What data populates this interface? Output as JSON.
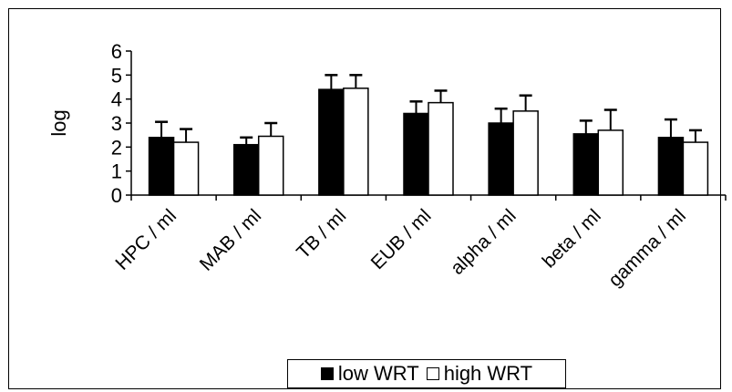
{
  "chart_data": {
    "type": "bar",
    "categories": [
      "HPC / ml",
      "MAB / ml",
      "TB / ml",
      "EUB / ml",
      "alpha / ml",
      "beta / ml",
      "gamma / ml"
    ],
    "series": [
      {
        "name": "low WRT",
        "color": "#000000",
        "values": [
          2.4,
          2.1,
          4.4,
          3.4,
          3.0,
          2.55,
          2.4
        ],
        "error_upper": [
          3.05,
          2.4,
          5.0,
          3.9,
          3.6,
          3.1,
          3.15
        ]
      },
      {
        "name": "high WRT",
        "color": "#ffffff",
        "values": [
          2.2,
          2.45,
          4.45,
          3.85,
          3.5,
          2.7,
          2.2
        ],
        "error_upper": [
          2.75,
          3.0,
          5.0,
          4.35,
          4.15,
          3.55,
          2.7
        ]
      }
    ],
    "ylabel": "log",
    "xlabel": "",
    "ylim": [
      0,
      6
    ],
    "yticks": [
      "0",
      "1",
      "2",
      "3",
      "4",
      "5",
      "6"
    ],
    "grid": false,
    "legend_position": "bottom"
  }
}
